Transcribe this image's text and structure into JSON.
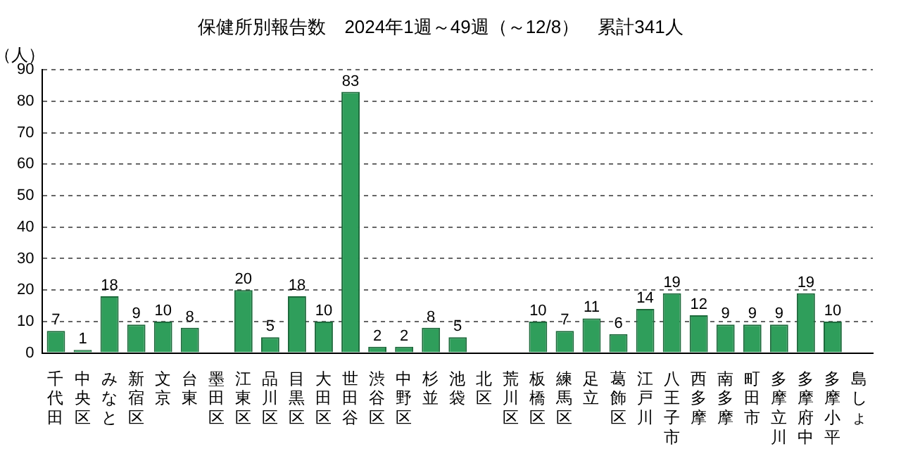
{
  "chart_data": {
    "type": "bar",
    "title": "保健所別報告数　2024年1週～49週（～12/8）　累計341人",
    "ylabel": "（人）",
    "categories": [
      "千代田",
      "中央区",
      "みなと",
      "新宿区",
      "文京",
      "台東",
      "墨田区",
      "江東区",
      "品川区",
      "目黒区",
      "大田区",
      "世田谷",
      "渋谷区",
      "中野区",
      "杉並",
      "池袋",
      "北区",
      "荒川区",
      "板橋区",
      "練馬区",
      "足立",
      "葛飾区",
      "江戸川",
      "八王子市",
      "西多摩",
      "南多摩",
      "町田市",
      "多摩立川",
      "多摩府中",
      "多摩小平",
      "島しょ"
    ],
    "values": [
      7,
      1,
      18,
      9,
      10,
      8,
      0,
      20,
      5,
      18,
      10,
      83,
      2,
      2,
      8,
      5,
      0,
      0,
      10,
      7,
      11,
      6,
      14,
      19,
      12,
      9,
      9,
      9,
      19,
      10,
      0
    ],
    "value_labels": [
      "7",
      "1",
      "18",
      "9",
      "10",
      "8",
      null,
      "20",
      "5",
      "18",
      "10",
      "83",
      "2",
      "2",
      "8",
      "5",
      null,
      null,
      "10",
      "7",
      "11",
      "6",
      "14",
      "19",
      "12",
      "9",
      "9",
      "9",
      "19",
      "10",
      null
    ],
    "color": "#2f9e5b",
    "ylim": [
      0,
      90
    ],
    "yticks": [
      0,
      10,
      20,
      30,
      40,
      50,
      60,
      70,
      80,
      90
    ],
    "grid": "y",
    "legend": false
  }
}
